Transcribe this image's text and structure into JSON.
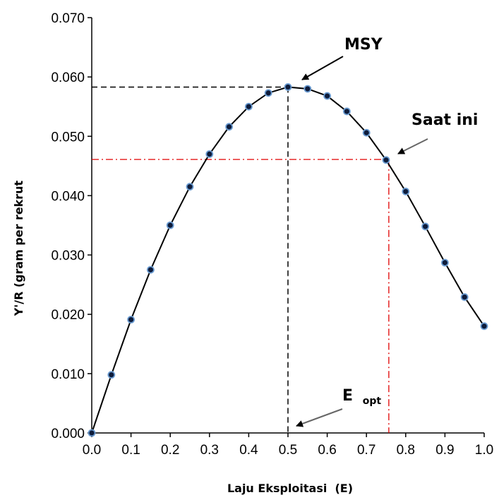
{
  "chart_data": {
    "type": "line",
    "xlabel": "Laju Eksploitasi  (E)",
    "ylabel": "Y'/R (gram per rekrut",
    "xlim": [
      0.0,
      1.0
    ],
    "ylim": [
      0.0,
      0.07
    ],
    "x_ticks": [
      "0.0",
      "0.1",
      "0.2",
      "0.3",
      "0.4",
      "0.5",
      "0.6",
      "0.7",
      "0.8",
      "0.9",
      "1.0"
    ],
    "y_ticks": [
      "0.000",
      "0.010",
      "0.020",
      "0.030",
      "0.040",
      "0.050",
      "0.060",
      "0.070"
    ],
    "series": [
      {
        "x": [
          0.0,
          0.05,
          0.1,
          0.15,
          0.2,
          0.25,
          0.3,
          0.35,
          0.4,
          0.45,
          0.5,
          0.55,
          0.6,
          0.65,
          0.7,
          0.75,
          0.8,
          0.85,
          0.9,
          0.95,
          1.0
        ],
        "y": [
          0.0,
          0.0098,
          0.0191,
          0.0275,
          0.035,
          0.0415,
          0.047,
          0.0516,
          0.055,
          0.0573,
          0.0583,
          0.058,
          0.0568,
          0.0542,
          0.0506,
          0.046,
          0.0407,
          0.0348,
          0.0287,
          0.0229,
          0.018
        ],
        "color": "#000000",
        "marker_color": "#6a9bd1"
      }
    ],
    "reference_lines": {
      "msy": {
        "x": 0.5,
        "y": 0.0583,
        "color": "#000000",
        "style": "dashed"
      },
      "current": {
        "x": 0.757,
        "y": 0.0461,
        "color": "#e00000",
        "style": "dash-dot"
      }
    },
    "annotations": {
      "msy_label": "MSY",
      "current_label": "Saat ini",
      "eopt_main": "E",
      "eopt_sub": "opt"
    }
  }
}
